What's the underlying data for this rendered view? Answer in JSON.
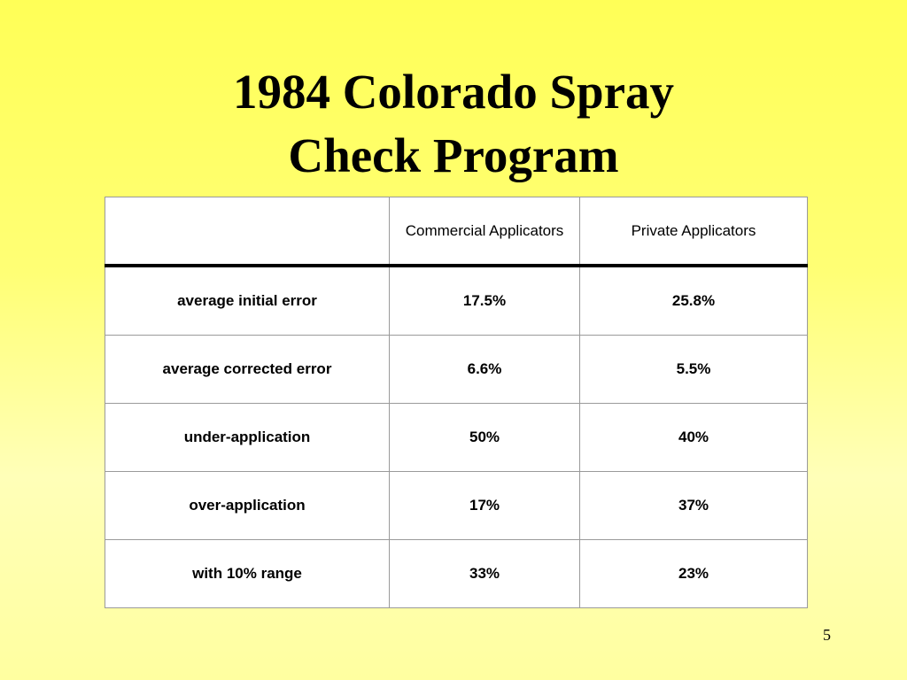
{
  "title": {
    "line1": "1984 Colorado Spray",
    "line2": "Check Program"
  },
  "table": {
    "headers": [
      "",
      "Commercial Applicators",
      "Private Applicators"
    ],
    "rows": [
      {
        "label": "average initial error",
        "commercial": "17.5%",
        "private": "25.8%"
      },
      {
        "label": "average corrected error",
        "commercial": "6.6%",
        "private": "5.5%"
      },
      {
        "label": "under-application",
        "commercial": "50%",
        "private": "40%"
      },
      {
        "label": "over-application",
        "commercial": "17%",
        "private": "37%"
      },
      {
        "label": "with 10% range",
        "commercial": "33%",
        "private": "23%"
      }
    ]
  },
  "page_number": "5"
}
